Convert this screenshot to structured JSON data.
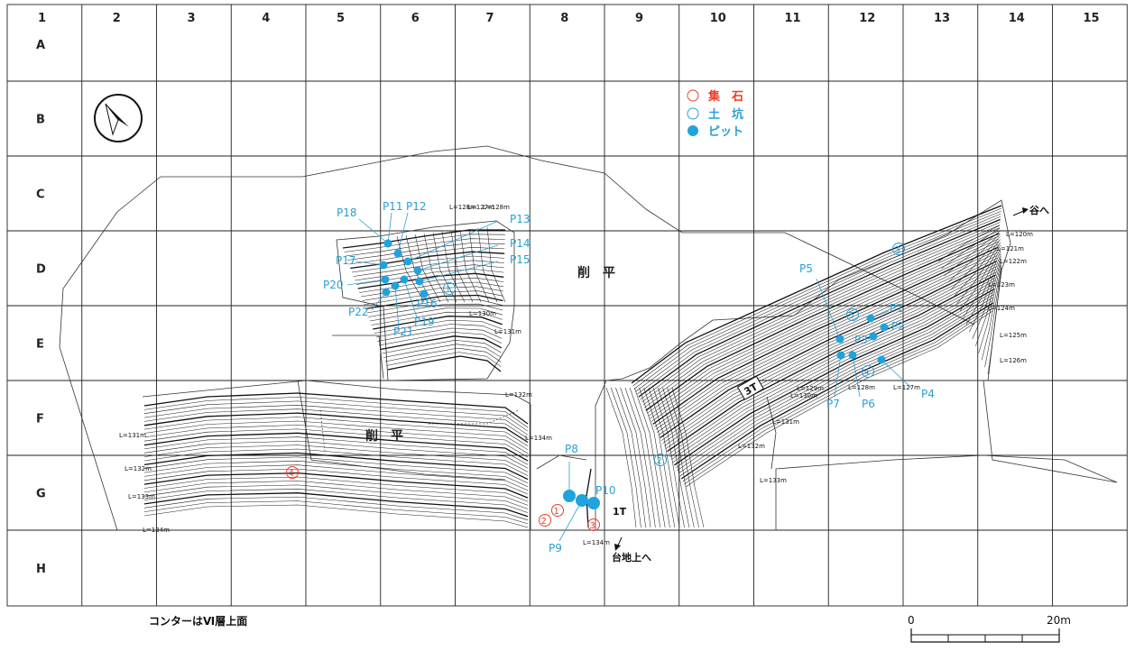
{
  "grid": {
    "columns": [
      "1",
      "2",
      "3",
      "4",
      "5",
      "6",
      "7",
      "8",
      "9",
      "10",
      "11",
      "12",
      "13",
      "14",
      "15"
    ],
    "rows": [
      "A",
      "B",
      "C",
      "D",
      "E",
      "F",
      "G",
      "H"
    ]
  },
  "legend": {
    "items": [
      {
        "symbol": "open-red-circle",
        "label": "集　石",
        "color": "#e8402a"
      },
      {
        "symbol": "open-cyan-circle",
        "label": "土　坑",
        "color": "#2a9fd6"
      },
      {
        "symbol": "filled-cyan-circle",
        "label": "ピット",
        "color": "#1fa3dd"
      }
    ]
  },
  "north_arrow": "north-arrow-icon",
  "areas": {
    "left_cut": "削　平",
    "center_cut": "削　平"
  },
  "features": {
    "pits": [
      {
        "id": "P11",
        "pos": [
          6.1,
          4.18
        ]
      },
      {
        "id": "P12",
        "pos": [
          6.27,
          4.25
        ]
      },
      {
        "id": "P13",
        "pos": [
          6.38,
          4.33
        ]
      },
      {
        "id": "P14",
        "pos": [
          6.52,
          4.45
        ]
      },
      {
        "id": "P15",
        "pos": [
          6.52,
          4.62
        ]
      },
      {
        "id": "P16",
        "pos": [
          6.6,
          4.85
        ]
      },
      {
        "id": "P17",
        "pos": [
          6.02,
          4.43
        ]
      },
      {
        "id": "P18",
        "pos": [
          6.1,
          4.18
        ]
      },
      {
        "id": "P19",
        "pos": [
          6.25,
          4.75
        ]
      },
      {
        "id": "P20",
        "pos": [
          6.05,
          4.62
        ]
      },
      {
        "id": "P21",
        "pos": [
          6.1,
          4.78
        ]
      },
      {
        "id": "P22",
        "pos": [
          6.05,
          4.82
        ]
      },
      {
        "id": "P1",
        "pos": [
          12.07,
          5.17
        ]
      },
      {
        "id": "P2",
        "pos": [
          12.22,
          5.27
        ]
      },
      {
        "id": "P3",
        "pos": [
          12.05,
          5.37
        ]
      },
      {
        "id": "P4",
        "pos": [
          12.22,
          5.7
        ]
      },
      {
        "id": "P5",
        "pos": [
          11.67,
          5.44
        ]
      },
      {
        "id": "P6",
        "pos": [
          11.85,
          5.63
        ]
      },
      {
        "id": "P7",
        "pos": [
          11.67,
          5.63
        ]
      },
      {
        "id": "P8",
        "pos": [
          8.05,
          6.53
        ]
      },
      {
        "id": "P9",
        "pos": [
          8.2,
          6.58
        ]
      },
      {
        "id": "P10",
        "pos": [
          8.35,
          6.6
        ]
      }
    ],
    "pit_labels": [
      "P1",
      "P2",
      "P3",
      "P4",
      "P5",
      "P6",
      "P7",
      "P8",
      "P9",
      "P10",
      "P11",
      "P12",
      "P13",
      "P14",
      "P15",
      "P16",
      "P17",
      "P18",
      "P19",
      "P20",
      "P21",
      "P22"
    ],
    "doko": [
      {
        "num": "①",
        "pos": [
          6.5,
          4.78
        ]
      },
      {
        "num": "②",
        "pos": [
          9.72,
          6.05
        ]
      },
      {
        "num": "③",
        "pos": [
          12.92,
          3.22
        ]
      },
      {
        "num": "④",
        "pos": [
          12.0,
          5.95
        ]
      },
      {
        "num": "⑤",
        "pos": [
          11.95,
          5.1
        ]
      }
    ],
    "shuseki": [
      {
        "num": "①",
        "pos": [
          7.87,
          6.72
        ]
      },
      {
        "num": "②",
        "pos": [
          7.7,
          6.82
        ]
      },
      {
        "num": "③",
        "pos": [
          8.32,
          6.92
        ]
      },
      {
        "num": "④",
        "pos": [
          4.4,
          6.22
        ]
      }
    ]
  },
  "elevations": [
    "L=120m",
    "L=121m",
    "L=122m",
    "L=123m",
    "L=124m",
    "L=125m",
    "L=126m",
    "L=127m",
    "L=128m",
    "L=129m",
    "L=130m",
    "L=131m",
    "L=132m",
    "L=133m",
    "L=134m"
  ],
  "elevation_labels": {
    "e120": "L=120m",
    "e121": "L=121m",
    "e122": "L=122m",
    "e123": "L=123m",
    "e124": "L=124m",
    "e125": "L=125m",
    "e126": "L=126m",
    "e128a": "L=128m",
    "e129": "L=129m",
    "e130a": "L=130m",
    "e131a": "L=131m",
    "e132a": "L=132m",
    "e133a": "L=133m",
    "e134a": "L=134m",
    "e128b": "L=128m",
    "e127b": "L=127m",
    "e128c": "L=128m",
    "e130b": "L=130m",
    "e131b": "L=131m",
    "e132b": "L=132m",
    "e134b": "L=134m",
    "e131c": "L=131m",
    "e132c": "L=132m",
    "e133c": "L=133m",
    "e134c": "L=134m",
    "e131d": "L=131m",
    "e132d": "L=132m",
    "e133d": "L=133m",
    "e134d": "L=134m",
    "e127d": "L=127m",
    "e128d": "L=128m"
  },
  "trenches": {
    "t1": "1T",
    "t3": "3T"
  },
  "directions": {
    "valley": "谷へ",
    "plateau": "台地上へ"
  },
  "note": "コンターはⅥ層上面",
  "scale": {
    "start": "0",
    "end": "20m"
  }
}
